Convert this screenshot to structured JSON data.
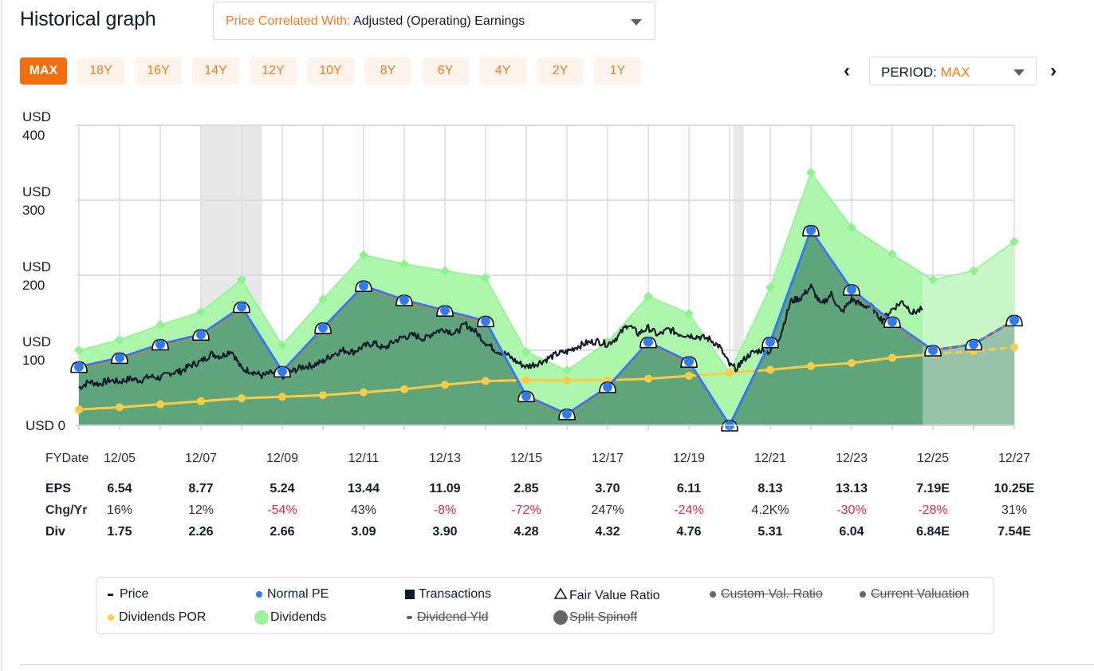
{
  "header": {
    "title": "Historical graph",
    "correlated_key": "Price Correlated With:",
    "correlated_value": "Adjusted (Operating) Earnings"
  },
  "ranges": [
    {
      "label": "MAX",
      "active": true
    },
    {
      "label": "18Y",
      "active": false
    },
    {
      "label": "16Y",
      "active": false
    },
    {
      "label": "14Y",
      "active": false
    },
    {
      "label": "12Y",
      "active": false
    },
    {
      "label": "10Y",
      "active": false
    },
    {
      "label": "8Y",
      "active": false
    },
    {
      "label": "6Y",
      "active": false
    },
    {
      "label": "4Y",
      "active": false
    },
    {
      "label": "2Y",
      "active": false
    },
    {
      "label": "1Y",
      "active": false
    }
  ],
  "period": {
    "key": "PERIOD:",
    "value": "MAX",
    "prev_icon": "chevron-left-icon",
    "next_icon": "chevron-right-icon",
    "prev_glyph": "‹",
    "next_glyph": "›"
  },
  "colors": {
    "accent": "#f26f0f",
    "normal_pe_fill": "#5fa57c",
    "normal_pe_line": "#2f7bf5",
    "dividends_fill": "#adf7ad",
    "dividends_marker": "#8ef28e",
    "dividends_por": "#fdcc46",
    "price": "#141a2e",
    "recession": "#e8e8e8",
    "grid": "#dcdce4",
    "negative": "#e0264b"
  },
  "chart_data": {
    "type": "area",
    "title": "Historical graph",
    "ylabel": "USD",
    "ylim": [
      0,
      400
    ],
    "y_ticks": [
      {
        "value": 0,
        "line1": "USD 0",
        "line2": ""
      },
      {
        "value": 100,
        "line1": "USD",
        "line2": "100"
      },
      {
        "value": 200,
        "line1": "USD",
        "line2": "200"
      },
      {
        "value": 300,
        "line1": "USD",
        "line2": "300"
      },
      {
        "value": 400,
        "line1": "USD",
        "line2": "400"
      }
    ],
    "grid": true,
    "x_start_year": 2004,
    "x_end_year": 2027,
    "x_tick_labels": [
      "12/05",
      "12/07",
      "12/09",
      "12/11",
      "12/13",
      "12/15",
      "12/17",
      "12/19",
      "12/21",
      "12/23",
      "12/25",
      "12/27"
    ],
    "x_tick_years": [
      2005,
      2007,
      2009,
      2011,
      2013,
      2015,
      2017,
      2019,
      2021,
      2023,
      2025,
      2027
    ],
    "forecast_start_year": 2024.75,
    "recessions": [
      [
        2007.0,
        2008.5
      ],
      [
        2020.1,
        2020.35
      ]
    ],
    "years": [
      2004,
      2005,
      2006,
      2007,
      2008,
      2009,
      2010,
      2011,
      2012,
      2013,
      2014,
      2015,
      2016,
      2017,
      2018,
      2019,
      2020,
      2021,
      2022,
      2023,
      2024,
      2025,
      2026,
      2027
    ],
    "series": [
      {
        "name": "Dividends",
        "values": [
          100,
          114,
          134,
          151,
          194,
          107,
          168,
          227,
          215,
          206,
          197,
          98,
          73,
          111,
          172,
          149,
          70,
          184,
          337,
          264,
          228,
          194,
          206,
          245
        ]
      },
      {
        "name": "Normal PE",
        "values": [
          78,
          90,
          108,
          121,
          158,
          72,
          130,
          186,
          167,
          153,
          139,
          39,
          15,
          51,
          111,
          85,
          0,
          111,
          260,
          181,
          138,
          100,
          108,
          140
        ]
      },
      {
        "name": "Dividends POR",
        "values": [
          21,
          24,
          28,
          32,
          36,
          38,
          40,
          44,
          48,
          54,
          59,
          60,
          60,
          60,
          62,
          66,
          70,
          74,
          79,
          83,
          90,
          95,
          99,
          104
        ]
      },
      {
        "name": "Price",
        "x": [
          2004.0,
          2004.25,
          2004.5,
          2004.75,
          2005.0,
          2005.25,
          2005.5,
          2005.75,
          2006.0,
          2006.25,
          2006.5,
          2006.75,
          2007.0,
          2007.25,
          2007.5,
          2007.75,
          2008.0,
          2008.25,
          2008.5,
          2008.75,
          2009.0,
          2009.25,
          2009.5,
          2009.75,
          2010.0,
          2010.25,
          2010.5,
          2010.75,
          2011.0,
          2011.25,
          2011.5,
          2011.75,
          2012.0,
          2012.25,
          2012.5,
          2012.75,
          2013.0,
          2013.25,
          2013.5,
          2013.75,
          2014.0,
          2014.25,
          2014.5,
          2014.75,
          2015.0,
          2015.25,
          2015.5,
          2015.75,
          2016.0,
          2016.25,
          2016.5,
          2016.75,
          2017.0,
          2017.25,
          2017.5,
          2017.75,
          2018.0,
          2018.25,
          2018.5,
          2018.75,
          2019.0,
          2019.25,
          2019.5,
          2019.75,
          2020.0,
          2020.2,
          2020.25,
          2020.5,
          2020.75,
          2021.0,
          2021.25,
          2021.5,
          2021.75,
          2022.0,
          2022.25,
          2022.5,
          2022.75,
          2023.0,
          2023.25,
          2023.5,
          2023.75,
          2024.0,
          2024.25,
          2024.5,
          2024.75
        ],
        "values": [
          50,
          58,
          55,
          60,
          58,
          62,
          60,
          65,
          63,
          70,
          72,
          80,
          85,
          95,
          92,
          100,
          75,
          72,
          66,
          70,
          65,
          72,
          78,
          80,
          85,
          95,
          100,
          98,
          105,
          110,
          102,
          112,
          118,
          120,
          115,
          125,
          128,
          122,
          135,
          125,
          110,
          100,
          95,
          85,
          78,
          82,
          88,
          95,
          98,
          105,
          110,
          112,
          108,
          118,
          135,
          122,
          130,
          120,
          128,
          122,
          120,
          118,
          115,
          105,
          80,
          75,
          82,
          95,
          100,
          98,
          120,
          165,
          170,
          185,
          160,
          175,
          150,
          168,
          160,
          158,
          140,
          155,
          165,
          150,
          155
        ]
      }
    ],
    "markers": {
      "fair_value_ratio_on": "Normal PE"
    },
    "table": {
      "row_labels": {
        "date": "FYDate",
        "eps": "EPS",
        "chg": "Chg/Yr",
        "div": "Div"
      },
      "columns": [
        {
          "date": "12/05",
          "eps": "6.54",
          "chg": "16%",
          "chg_negative": false,
          "div": "1.75"
        },
        {
          "date": "12/07",
          "eps": "8.77",
          "chg": "12%",
          "chg_negative": false,
          "div": "2.26"
        },
        {
          "date": "12/09",
          "eps": "5.24",
          "chg": "-54%",
          "chg_negative": true,
          "div": "2.66"
        },
        {
          "date": "12/11",
          "eps": "13.44",
          "chg": "43%",
          "chg_negative": false,
          "div": "3.09"
        },
        {
          "date": "12/13",
          "eps": "11.09",
          "chg": "-8%",
          "chg_negative": true,
          "div": "3.90"
        },
        {
          "date": "12/15",
          "eps": "2.85",
          "chg": "-72%",
          "chg_negative": true,
          "div": "4.28"
        },
        {
          "date": "12/17",
          "eps": "3.70",
          "chg": "247%",
          "chg_negative": false,
          "div": "4.32"
        },
        {
          "date": "12/19",
          "eps": "6.11",
          "chg": "-24%",
          "chg_negative": true,
          "div": "4.76"
        },
        {
          "date": "12/21",
          "eps": "8.13",
          "chg": "4.2K%",
          "chg_negative": false,
          "div": "5.31"
        },
        {
          "date": "12/23",
          "eps": "13.13",
          "chg": "-30%",
          "chg_negative": true,
          "div": "6.04"
        },
        {
          "date": "12/25",
          "eps": "7.19E",
          "chg": "-28%",
          "chg_negative": true,
          "div": "6.84E"
        },
        {
          "date": "12/27",
          "eps": "10.25E",
          "chg": "31%",
          "chg_negative": false,
          "div": "7.54E"
        }
      ]
    },
    "legend": [
      {
        "label": "Price",
        "symbol": "dash",
        "color": "#141a2e",
        "enabled": true,
        "icon": "price-dash-icon"
      },
      {
        "label": "Normal PE",
        "symbol": "dot",
        "color": "#2f7bf5",
        "enabled": true,
        "icon": "normal-pe-dot-icon"
      },
      {
        "label": "Transactions",
        "symbol": "square",
        "color": "#141a2e",
        "enabled": true,
        "icon": "transactions-square-icon"
      },
      {
        "label": "Fair Value Ratio",
        "symbol": "triangle",
        "color": "#141a2e",
        "enabled": true,
        "icon": "fair-value-triangle-icon"
      },
      {
        "label": "Custom Val. Ratio",
        "symbol": "dot",
        "color": "#666666",
        "enabled": false,
        "icon": "custom-val-dot-icon"
      },
      {
        "label": "Current Valuation",
        "symbol": "dot",
        "color": "#666666",
        "enabled": false,
        "icon": "current-valuation-dot-icon"
      },
      {
        "label": "Dividends POR",
        "symbol": "dot",
        "color": "#fdcc46",
        "enabled": true,
        "icon": "dividends-por-dot-icon"
      },
      {
        "label": "Dividends",
        "symbol": "bigdot",
        "color": "#9cf59c",
        "enabled": true,
        "icon": "dividends-dot-icon"
      },
      {
        "label": "Dividend Yld",
        "symbol": "smalldash",
        "color": "#666666",
        "enabled": false,
        "icon": "dividend-yld-icon"
      },
      {
        "label": "Split Spinoff",
        "symbol": "bigdot",
        "color": "#666666",
        "enabled": false,
        "icon": "split-spinoff-dot-icon"
      }
    ]
  }
}
